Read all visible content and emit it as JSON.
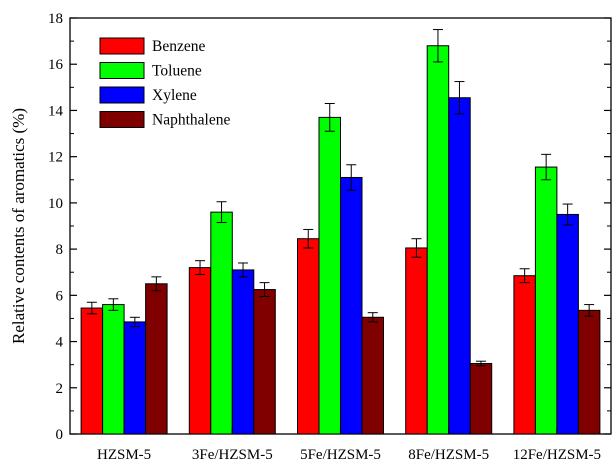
{
  "chart_data": {
    "type": "bar",
    "categories": [
      "HZSM-5",
      "3Fe/HZSM-5",
      "5Fe/HZSM-5",
      "8Fe/HZSM-5",
      "12Fe/HZSM-5"
    ],
    "series": [
      {
        "name": "Benzene",
        "color": "#ff0000",
        "values": [
          5.45,
          7.2,
          8.45,
          8.05,
          6.85
        ],
        "errors": [
          0.25,
          0.3,
          0.4,
          0.4,
          0.3
        ]
      },
      {
        "name": "Toluene",
        "color": "#00ff00",
        "values": [
          5.6,
          9.6,
          13.7,
          16.8,
          11.55
        ],
        "errors": [
          0.25,
          0.45,
          0.6,
          0.7,
          0.55
        ]
      },
      {
        "name": "Xylene",
        "color": "#0000ff",
        "values": [
          4.85,
          7.1,
          11.1,
          14.55,
          9.5
        ],
        "errors": [
          0.2,
          0.3,
          0.55,
          0.7,
          0.45
        ]
      },
      {
        "name": "Naphthalene",
        "color": "#800000",
        "values": [
          6.5,
          6.25,
          5.05,
          3.05,
          5.35
        ],
        "errors": [
          0.3,
          0.3,
          0.2,
          0.1,
          0.25
        ]
      }
    ],
    "title": "",
    "xlabel": "",
    "ylabel": "Relative contents of aromatics (%)",
    "ylim": [
      0,
      18
    ],
    "yticks": [
      0,
      2,
      4,
      6,
      8,
      10,
      12,
      14,
      16,
      18
    ],
    "grid": false,
    "legend_position": "top-left",
    "error_bars": true
  }
}
